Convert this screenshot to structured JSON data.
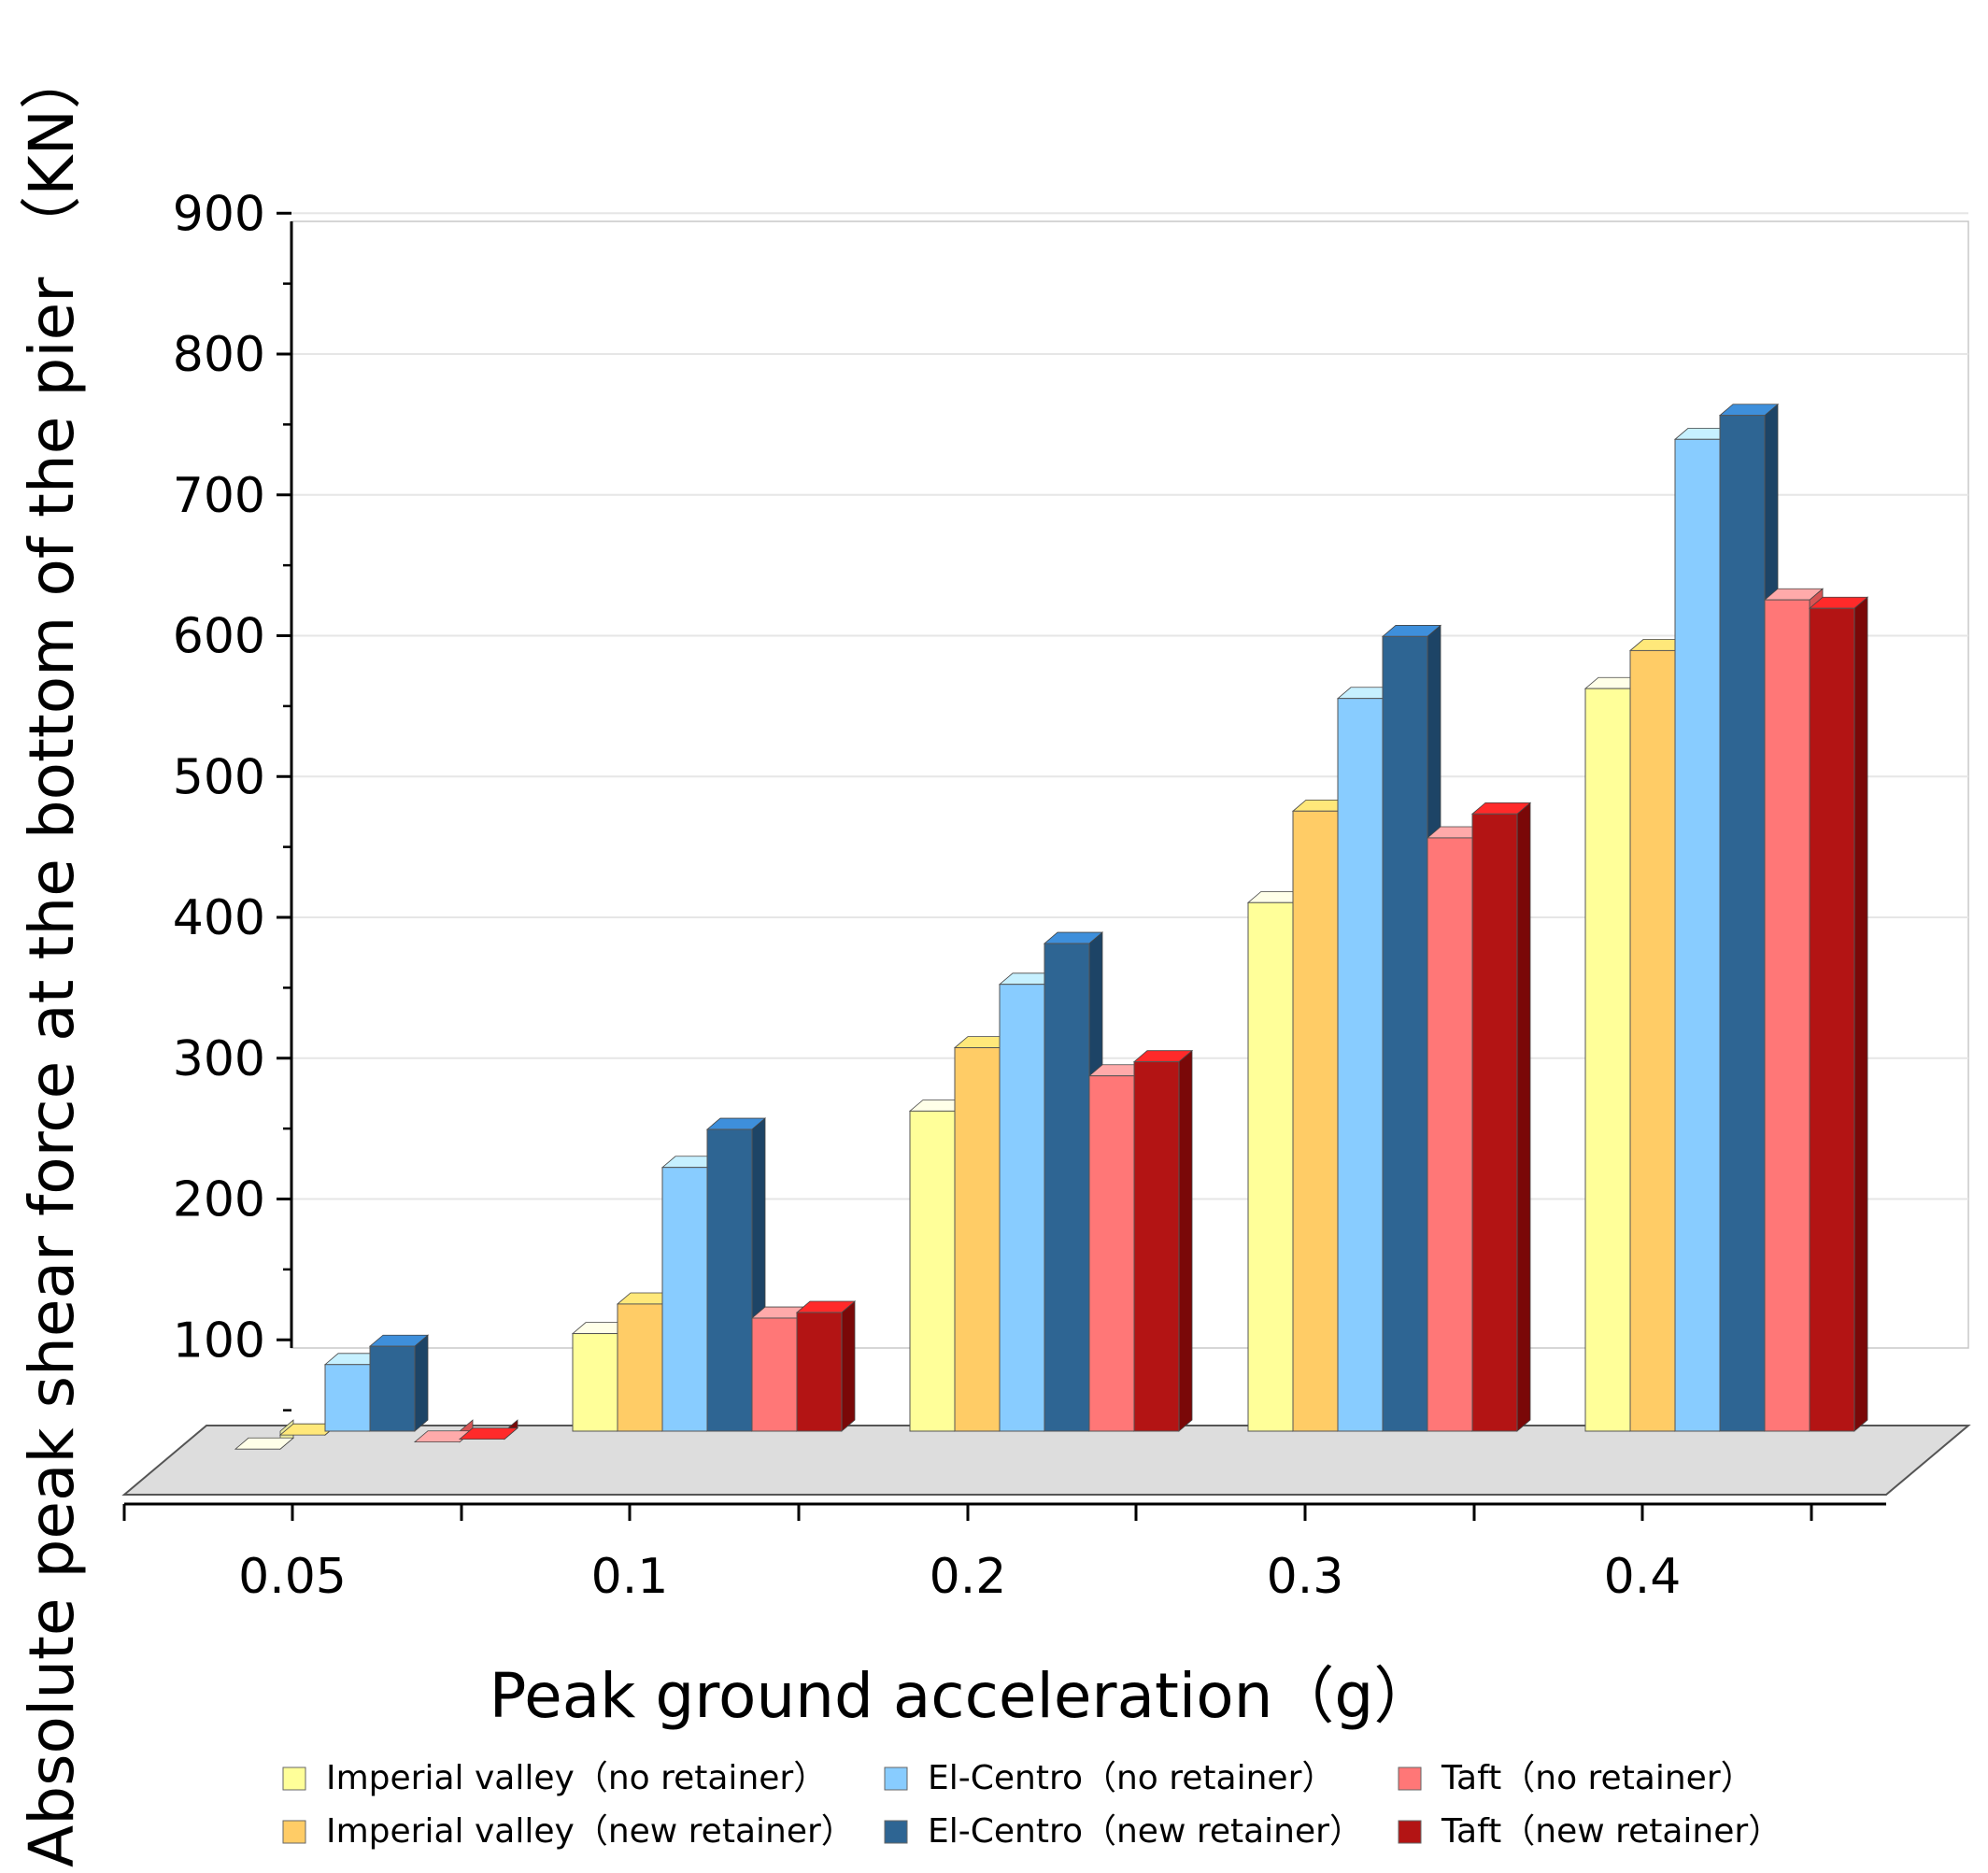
{
  "chart_data": {
    "type": "bar",
    "title": "",
    "xlabel": "Peak ground acceleration（g）",
    "ylabel": "Absolute peak shear force at the bottom of the pier （KN）",
    "categories": [
      "0.05",
      "0.1",
      "0.2",
      "0.3",
      "0.4"
    ],
    "ylim": [
      0,
      900
    ],
    "yticks": [
      100,
      200,
      300,
      400,
      500,
      600,
      700,
      800,
      900
    ],
    "grid": true,
    "legend_position": "bottom",
    "series": [
      {
        "name": "Imperial valley（no retainer）",
        "values": [
          45,
          127,
          285,
          433,
          585
        ],
        "color": "#FFFF99",
        "top_color": "#FFFFE8",
        "side_color": "#E8E8A0"
      },
      {
        "name": "Imperial valley（new retainer）",
        "values": [
          55,
          148,
          330,
          498,
          612
        ],
        "color": "#FFCC66",
        "top_color": "#FFE87A",
        "side_color": "#D9A94A"
      },
      {
        "name": "El-Centro（no retainer）",
        "values": [
          105,
          245,
          375,
          578,
          762
        ],
        "color": "#88CCFF",
        "top_color": "#C6F0FF",
        "side_color": "#5FA7DE"
      },
      {
        "name": "El-Centro（new retainer）",
        "values": [
          118,
          272,
          404,
          622,
          779
        ],
        "color": "#2E6593",
        "top_color": "#3E8FDB",
        "side_color": "#1D4466"
      },
      {
        "name": "Taft（no retainer）",
        "values": [
          50,
          138,
          310,
          479,
          648
        ],
        "color": "#FF7777",
        "top_color": "#FFAAAA",
        "side_color": "#D65454"
      },
      {
        "name": "Taft（new retainer）",
        "values": [
          52,
          142,
          320,
          496,
          642
        ],
        "color": "#B31414",
        "top_color": "#FF2A2A",
        "side_color": "#7A0808"
      }
    ]
  }
}
